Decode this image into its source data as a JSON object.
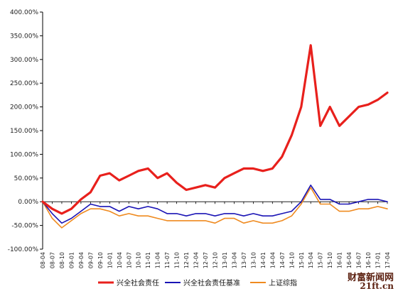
{
  "chart_data": {
    "type": "line",
    "title": "",
    "xlabel": "",
    "ylabel": "",
    "ylim": [
      -100,
      400
    ],
    "ytick_step": 50,
    "ytick_labels": [
      "400.00%",
      "350.00%",
      "300.00%",
      "250.00%",
      "200.00%",
      "150.00%",
      "100.00%",
      "50.00%",
      "0.00%",
      "-50.00%",
      "-100.00%"
    ],
    "x": [
      "08-04",
      "08-07",
      "08-10",
      "09-01",
      "09-04",
      "09-07",
      "09-10",
      "10-01",
      "10-04",
      "10-07",
      "10-10",
      "11-01",
      "11-04",
      "11-07",
      "11-10",
      "12-01",
      "12-04",
      "12-07",
      "12-10",
      "13-01",
      "13-04",
      "13-07",
      "13-10",
      "14-01",
      "14-04",
      "14-07",
      "14-10",
      "15-01",
      "15-04",
      "15-07",
      "15-10",
      "16-01",
      "16-04",
      "16-07",
      "16-10",
      "17-01",
      "17-04"
    ],
    "series": [
      {
        "name": "兴全社会责任",
        "color": "#e8201c",
        "values": [
          0,
          -15,
          -25,
          -15,
          5,
          20,
          55,
          60,
          45,
          55,
          65,
          70,
          50,
          60,
          40,
          25,
          30,
          35,
          30,
          50,
          60,
          70,
          70,
          65,
          70,
          95,
          140,
          200,
          330,
          160,
          200,
          160,
          180,
          200,
          205,
          215,
          230
        ]
      },
      {
        "name": "兴全社会责任基准",
        "color": "#1a14b5",
        "values": [
          0,
          -25,
          -45,
          -35,
          -20,
          -5,
          -10,
          -10,
          -20,
          -10,
          -15,
          -10,
          -15,
          -25,
          -25,
          -30,
          -25,
          -25,
          -30,
          -25,
          -25,
          -30,
          -25,
          -30,
          -30,
          -25,
          -20,
          0,
          35,
          5,
          5,
          -5,
          -5,
          0,
          5,
          5,
          0
        ]
      },
      {
        "name": "上证综指",
        "color": "#ef8a1f",
        "values": [
          0,
          -35,
          -55,
          -40,
          -25,
          -15,
          -15,
          -20,
          -30,
          -25,
          -30,
          -30,
          -35,
          -40,
          -40,
          -40,
          -40,
          -40,
          -45,
          -35,
          -35,
          -45,
          -40,
          -45,
          -45,
          -40,
          -30,
          -5,
          30,
          -5,
          -5,
          -20,
          -20,
          -15,
          -15,
          -10,
          -15
        ]
      }
    ],
    "grid": false,
    "legend_position": "bottom"
  },
  "watermark": {
    "line1": "财富新闻网",
    "line2": "21ft.cn"
  }
}
